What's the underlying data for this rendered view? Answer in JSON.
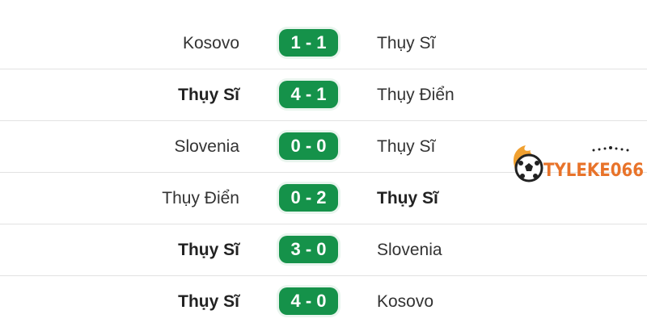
{
  "colors": {
    "score_bg": "#15924a",
    "logo_orange": "#e8732a"
  },
  "matches": [
    {
      "home": "Kosovo",
      "score": "1 - 1",
      "away": "Thụy Sĩ",
      "winner": "none"
    },
    {
      "home": "Thụy Sĩ",
      "score": "4 - 1",
      "away": "Thụy Điển",
      "winner": "home"
    },
    {
      "home": "Slovenia",
      "score": "0 - 0",
      "away": "Thụy Sĩ",
      "winner": "none"
    },
    {
      "home": "Thụy Điển",
      "score": "0 - 2",
      "away": "Thụy Sĩ",
      "winner": "away"
    },
    {
      "home": "Thụy Sĩ",
      "score": "3 - 0",
      "away": "Slovenia",
      "winner": "home"
    },
    {
      "home": "Thụy Sĩ",
      "score": "4 - 0",
      "away": "Kosovo",
      "winner": "home"
    }
  ],
  "logo": {
    "text": "TYLEKE066",
    "icon": "flaming-soccer-ball-icon"
  }
}
